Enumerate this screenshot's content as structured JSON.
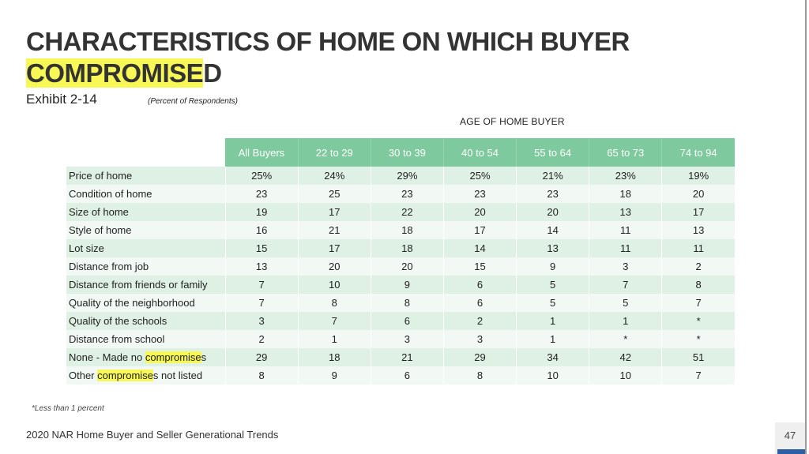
{
  "slide": {
    "title_line1": "CHARACTERISTICS OF HOME ON WHICH BUYER",
    "title_hl": "COMPROMISE",
    "title_rest": "D",
    "exhibit": "Exhibit 2-14",
    "subtitle": "(Percent of Respondents)",
    "age_header": "AGE OF HOME BUYER",
    "footnote": "*Less than 1 percent",
    "footer": "2020 NAR Home Buyer and Seller Generational Trends",
    "page_number": "47",
    "colors": {
      "header_green": "#7ec99e",
      "row_green": "#dff0e4",
      "row_light": "#f2f9f4",
      "highlight": "#f7f756",
      "page_bar": "#2e5fa6"
    }
  },
  "table": {
    "headers": [
      "All Buyers",
      "22 to 29",
      "30 to 39",
      "40 to 54",
      "55 to 64",
      "65 to 73",
      "74 to 94"
    ],
    "rows": [
      {
        "label": "Price of home",
        "values": [
          "25%",
          "24%",
          "29%",
          "25%",
          "21%",
          "23%",
          "19%"
        ]
      },
      {
        "label": "Condition of home",
        "values": [
          "23",
          "25",
          "23",
          "23",
          "23",
          "18",
          "20"
        ]
      },
      {
        "label": "Size of home",
        "values": [
          "19",
          "17",
          "22",
          "20",
          "20",
          "13",
          "17"
        ]
      },
      {
        "label": "Style of home",
        "values": [
          "16",
          "21",
          "18",
          "17",
          "14",
          "11",
          "13"
        ]
      },
      {
        "label": "Lot size",
        "values": [
          "15",
          "17",
          "18",
          "14",
          "13",
          "11",
          "11"
        ]
      },
      {
        "label": "Distance from job",
        "values": [
          "13",
          "20",
          "20",
          "15",
          "9",
          "3",
          "2"
        ]
      },
      {
        "label": "Distance from friends or family",
        "values": [
          "7",
          "10",
          "9",
          "6",
          "5",
          "7",
          "8"
        ]
      },
      {
        "label": "Quality of the neighborhood",
        "values": [
          "7",
          "8",
          "8",
          "6",
          "5",
          "5",
          "7"
        ]
      },
      {
        "label": "Quality of the schools",
        "values": [
          "3",
          "7",
          "6",
          "2",
          "1",
          "1",
          "*"
        ]
      },
      {
        "label": "Distance from school",
        "values": [
          "2",
          "1",
          "3",
          "3",
          "1",
          "*",
          "*"
        ]
      },
      {
        "label_pre": "None - Made no ",
        "label_hl": "compromise",
        "label_post": "s",
        "values": [
          "29",
          "18",
          "21",
          "29",
          "34",
          "42",
          "51"
        ]
      },
      {
        "label_pre": "Other ",
        "label_hl": "compromise",
        "label_post": "s not listed",
        "values": [
          "8",
          "9",
          "6",
          "8",
          "10",
          "10",
          "7"
        ]
      }
    ]
  }
}
